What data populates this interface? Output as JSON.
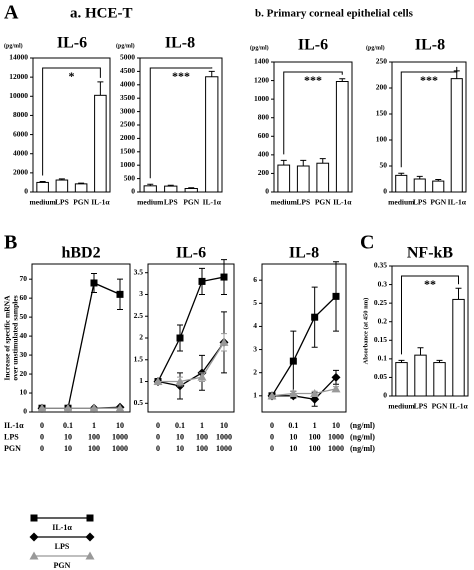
{
  "panel_labels": [
    "A",
    "B",
    "C"
  ],
  "headers": [
    "a. HCE-T",
    "b. Primary corneal epithelial cells"
  ],
  "dose_table": {
    "rows": [
      {
        "name": "IL-1α",
        "doses": [
          0,
          0.1,
          1,
          10
        ],
        "unit": "(ng/ml)"
      },
      {
        "name": "LPS",
        "doses": [
          0,
          10,
          100,
          1000
        ],
        "unit": "(ng/ml)"
      },
      {
        "name": "PGN",
        "doses": [
          0,
          10,
          100,
          1000
        ],
        "unit": "(ng/ml)"
      }
    ]
  },
  "chart_data": [
    {
      "type": "bar",
      "title": "IL-6",
      "ylabel": "(pg/ml)",
      "categories": [
        "medium",
        "LPS",
        "PGN",
        "IL-1α"
      ],
      "values": [
        1000,
        1250,
        850,
        10100
      ],
      "errors": [
        100,
        120,
        80,
        1400
      ],
      "color": "#ffffff",
      "ylim": [
        0,
        14000
      ],
      "yticks": [
        0,
        2000,
        4000,
        6000,
        8000,
        10000,
        12000,
        14000
      ],
      "annotation": "*"
    },
    {
      "type": "bar",
      "title": "IL-8",
      "ylabel": "(pg/ml)",
      "categories": [
        "medium",
        "LPS",
        "PGN",
        "IL-1α"
      ],
      "values": [
        230,
        220,
        130,
        4300
      ],
      "errors": [
        60,
        30,
        30,
        200
      ],
      "color": "#ffffff",
      "ylim": [
        0,
        5000
      ],
      "yticks": [
        0,
        500,
        1000,
        1500,
        2000,
        2500,
        3000,
        3500,
        4000,
        4500,
        5000
      ],
      "annotation": "***"
    },
    {
      "type": "bar",
      "title": "IL-6",
      "ylabel": "(pg/ml)",
      "categories": [
        "medium",
        "LPS",
        "PGN",
        "IL-1α"
      ],
      "values": [
        290,
        280,
        310,
        1190
      ],
      "errors": [
        50,
        60,
        50,
        30
      ],
      "color": "#ffffff",
      "ylim": [
        0,
        1400
      ],
      "yticks": [
        0,
        200,
        400,
        600,
        800,
        1000,
        1200,
        1400
      ],
      "annotation": "***"
    },
    {
      "type": "bar",
      "title": "IL-8",
      "ylabel": "(pg/ml)",
      "categories": [
        "medium",
        "LPS",
        "PGN",
        "IL-1α"
      ],
      "values": [
        32,
        25,
        21,
        218
      ],
      "errors": [
        4,
        5,
        3,
        15
      ],
      "color": "#ffffff",
      "ylim": [
        0,
        250
      ],
      "yticks": [
        0,
        50,
        100,
        150,
        200,
        250
      ],
      "annotation": "***"
    },
    {
      "type": "line",
      "title": "hBD2",
      "ylabel": [
        "Increase of specific mRNA",
        "over unstimulated samples"
      ],
      "ylim": [
        0,
        78
      ],
      "yticks": [
        0,
        10,
        20,
        30,
        40,
        50,
        60,
        70
      ],
      "series": [
        {
          "name": "IL-1α",
          "color": "#000000",
          "marker": "square",
          "values": [
            2,
            2,
            68,
            62
          ],
          "errors": [
            0,
            0,
            5,
            8
          ]
        },
        {
          "name": "LPS",
          "color": "#000000",
          "marker": "diamond",
          "values": [
            2,
            2,
            2,
            2.5
          ],
          "errors": [
            0,
            0,
            0,
            0
          ]
        },
        {
          "name": "PGN",
          "color": "#999999",
          "marker": "triangle",
          "values": [
            2,
            2,
            2,
            2
          ],
          "errors": [
            0,
            0,
            0,
            0
          ]
        }
      ]
    },
    {
      "type": "line",
      "title": "IL-6",
      "ylim": [
        0.3,
        3.7
      ],
      "yticks": [
        0.5,
        1,
        1.5,
        2,
        2.5,
        3,
        3.5
      ],
      "series": [
        {
          "name": "IL-1α",
          "color": "#000000",
          "marker": "square",
          "values": [
            1,
            2,
            3.3,
            3.4
          ],
          "errors": [
            0,
            0.3,
            0.3,
            0.4
          ]
        },
        {
          "name": "LPS",
          "color": "#000000",
          "marker": "diamond",
          "values": [
            1,
            0.9,
            1.2,
            1.9
          ],
          "errors": [
            0,
            0.3,
            0.4,
            0.7
          ]
        },
        {
          "name": "PGN",
          "color": "#999999",
          "marker": "triangle",
          "values": [
            1,
            1,
            1.1,
            1.9
          ],
          "errors": [
            0,
            0.1,
            0.1,
            0.2
          ]
        }
      ]
    },
    {
      "type": "line",
      "title": "IL-8",
      "ylim": [
        0.3,
        6.7
      ],
      "yticks": [
        1,
        2,
        3,
        4,
        5,
        6
      ],
      "series": [
        {
          "name": "IL-1α",
          "color": "#000000",
          "marker": "square",
          "values": [
            1,
            2.5,
            4.4,
            5.3
          ],
          "errors": [
            0,
            1.3,
            1.3,
            1.5
          ]
        },
        {
          "name": "LPS",
          "color": "#000000",
          "marker": "diamond",
          "values": [
            1,
            1,
            0.85,
            1.8
          ],
          "errors": [
            0,
            0.1,
            0.3,
            0.3
          ]
        },
        {
          "name": "PGN",
          "color": "#999999",
          "marker": "triangle",
          "values": [
            1,
            1.1,
            1.1,
            1.3
          ],
          "errors": [
            0,
            0.1,
            0.1,
            0.1
          ]
        }
      ]
    },
    {
      "type": "bar",
      "title": "NF-kB",
      "ylabel": "Absorbance (at 450 nm)",
      "categories": [
        "medium",
        "LPS",
        "PGN",
        "IL-1α"
      ],
      "values": [
        0.09,
        0.11,
        0.09,
        0.26
      ],
      "errors": [
        0.006,
        0.02,
        0.006,
        0.03
      ],
      "color": "#ffffff",
      "ylim": [
        0,
        0.35
      ],
      "yticks": [
        0,
        0.05,
        0.1,
        0.15,
        0.2,
        0.25,
        0.3,
        0.35
      ],
      "annotation": "**"
    }
  ]
}
